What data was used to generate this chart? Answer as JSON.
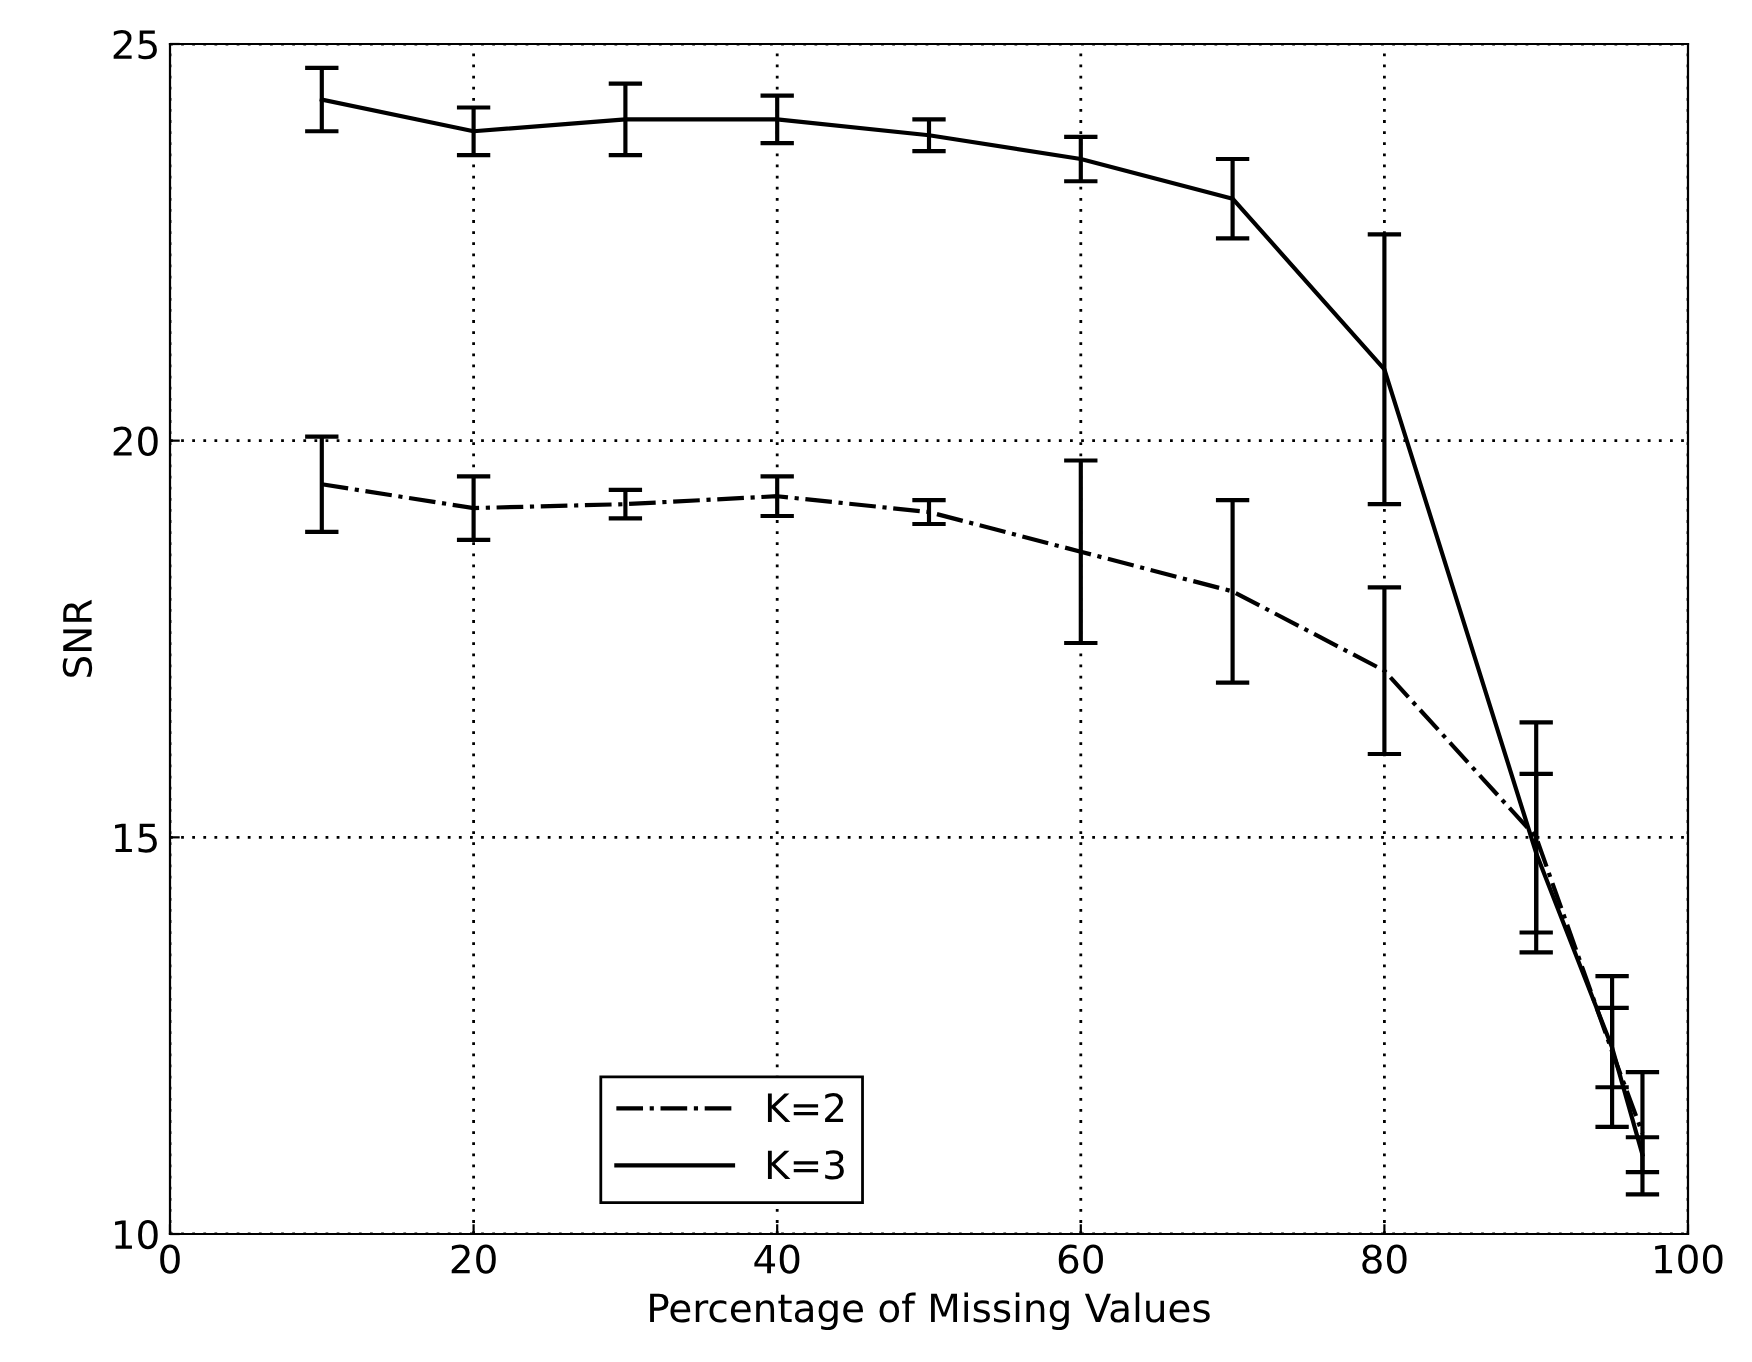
{
  "chart_data": {
    "type": "line",
    "xlabel": "Percentage of Missing Values",
    "ylabel": "SNR",
    "x": [
      10,
      20,
      30,
      40,
      50,
      60,
      70,
      80,
      90,
      95,
      97
    ],
    "series": [
      {
        "name": "K=2",
        "color": "#000000",
        "line_style": "dashdot",
        "values": [
          19.45,
          19.15,
          19.2,
          19.3,
          19.1,
          18.6,
          18.1,
          17.1,
          15.0,
          12.3,
          11.27
        ],
        "errors": [
          0.6,
          0.4,
          0.18,
          0.25,
          0.15,
          1.15,
          1.15,
          1.05,
          1.45,
          0.95,
          0.77
        ]
      },
      {
        "name": "K=3",
        "color": "#000000",
        "line_style": "solid",
        "values": [
          24.3,
          23.9,
          24.05,
          24.05,
          23.85,
          23.55,
          23.05,
          20.9,
          14.8,
          12.35,
          11.0
        ],
        "errors": [
          0.4,
          0.3,
          0.45,
          0.3,
          0.2,
          0.28,
          0.5,
          1.7,
          1.0,
          0.5,
          0.22
        ]
      }
    ],
    "xlim": [
      0,
      100
    ],
    "ylim": [
      10,
      25
    ],
    "xticks": [
      0,
      20,
      40,
      60,
      80,
      100
    ],
    "yticks": [
      10,
      15,
      20,
      25
    ],
    "grid": true,
    "legend": "bottom",
    "marker": "none"
  }
}
